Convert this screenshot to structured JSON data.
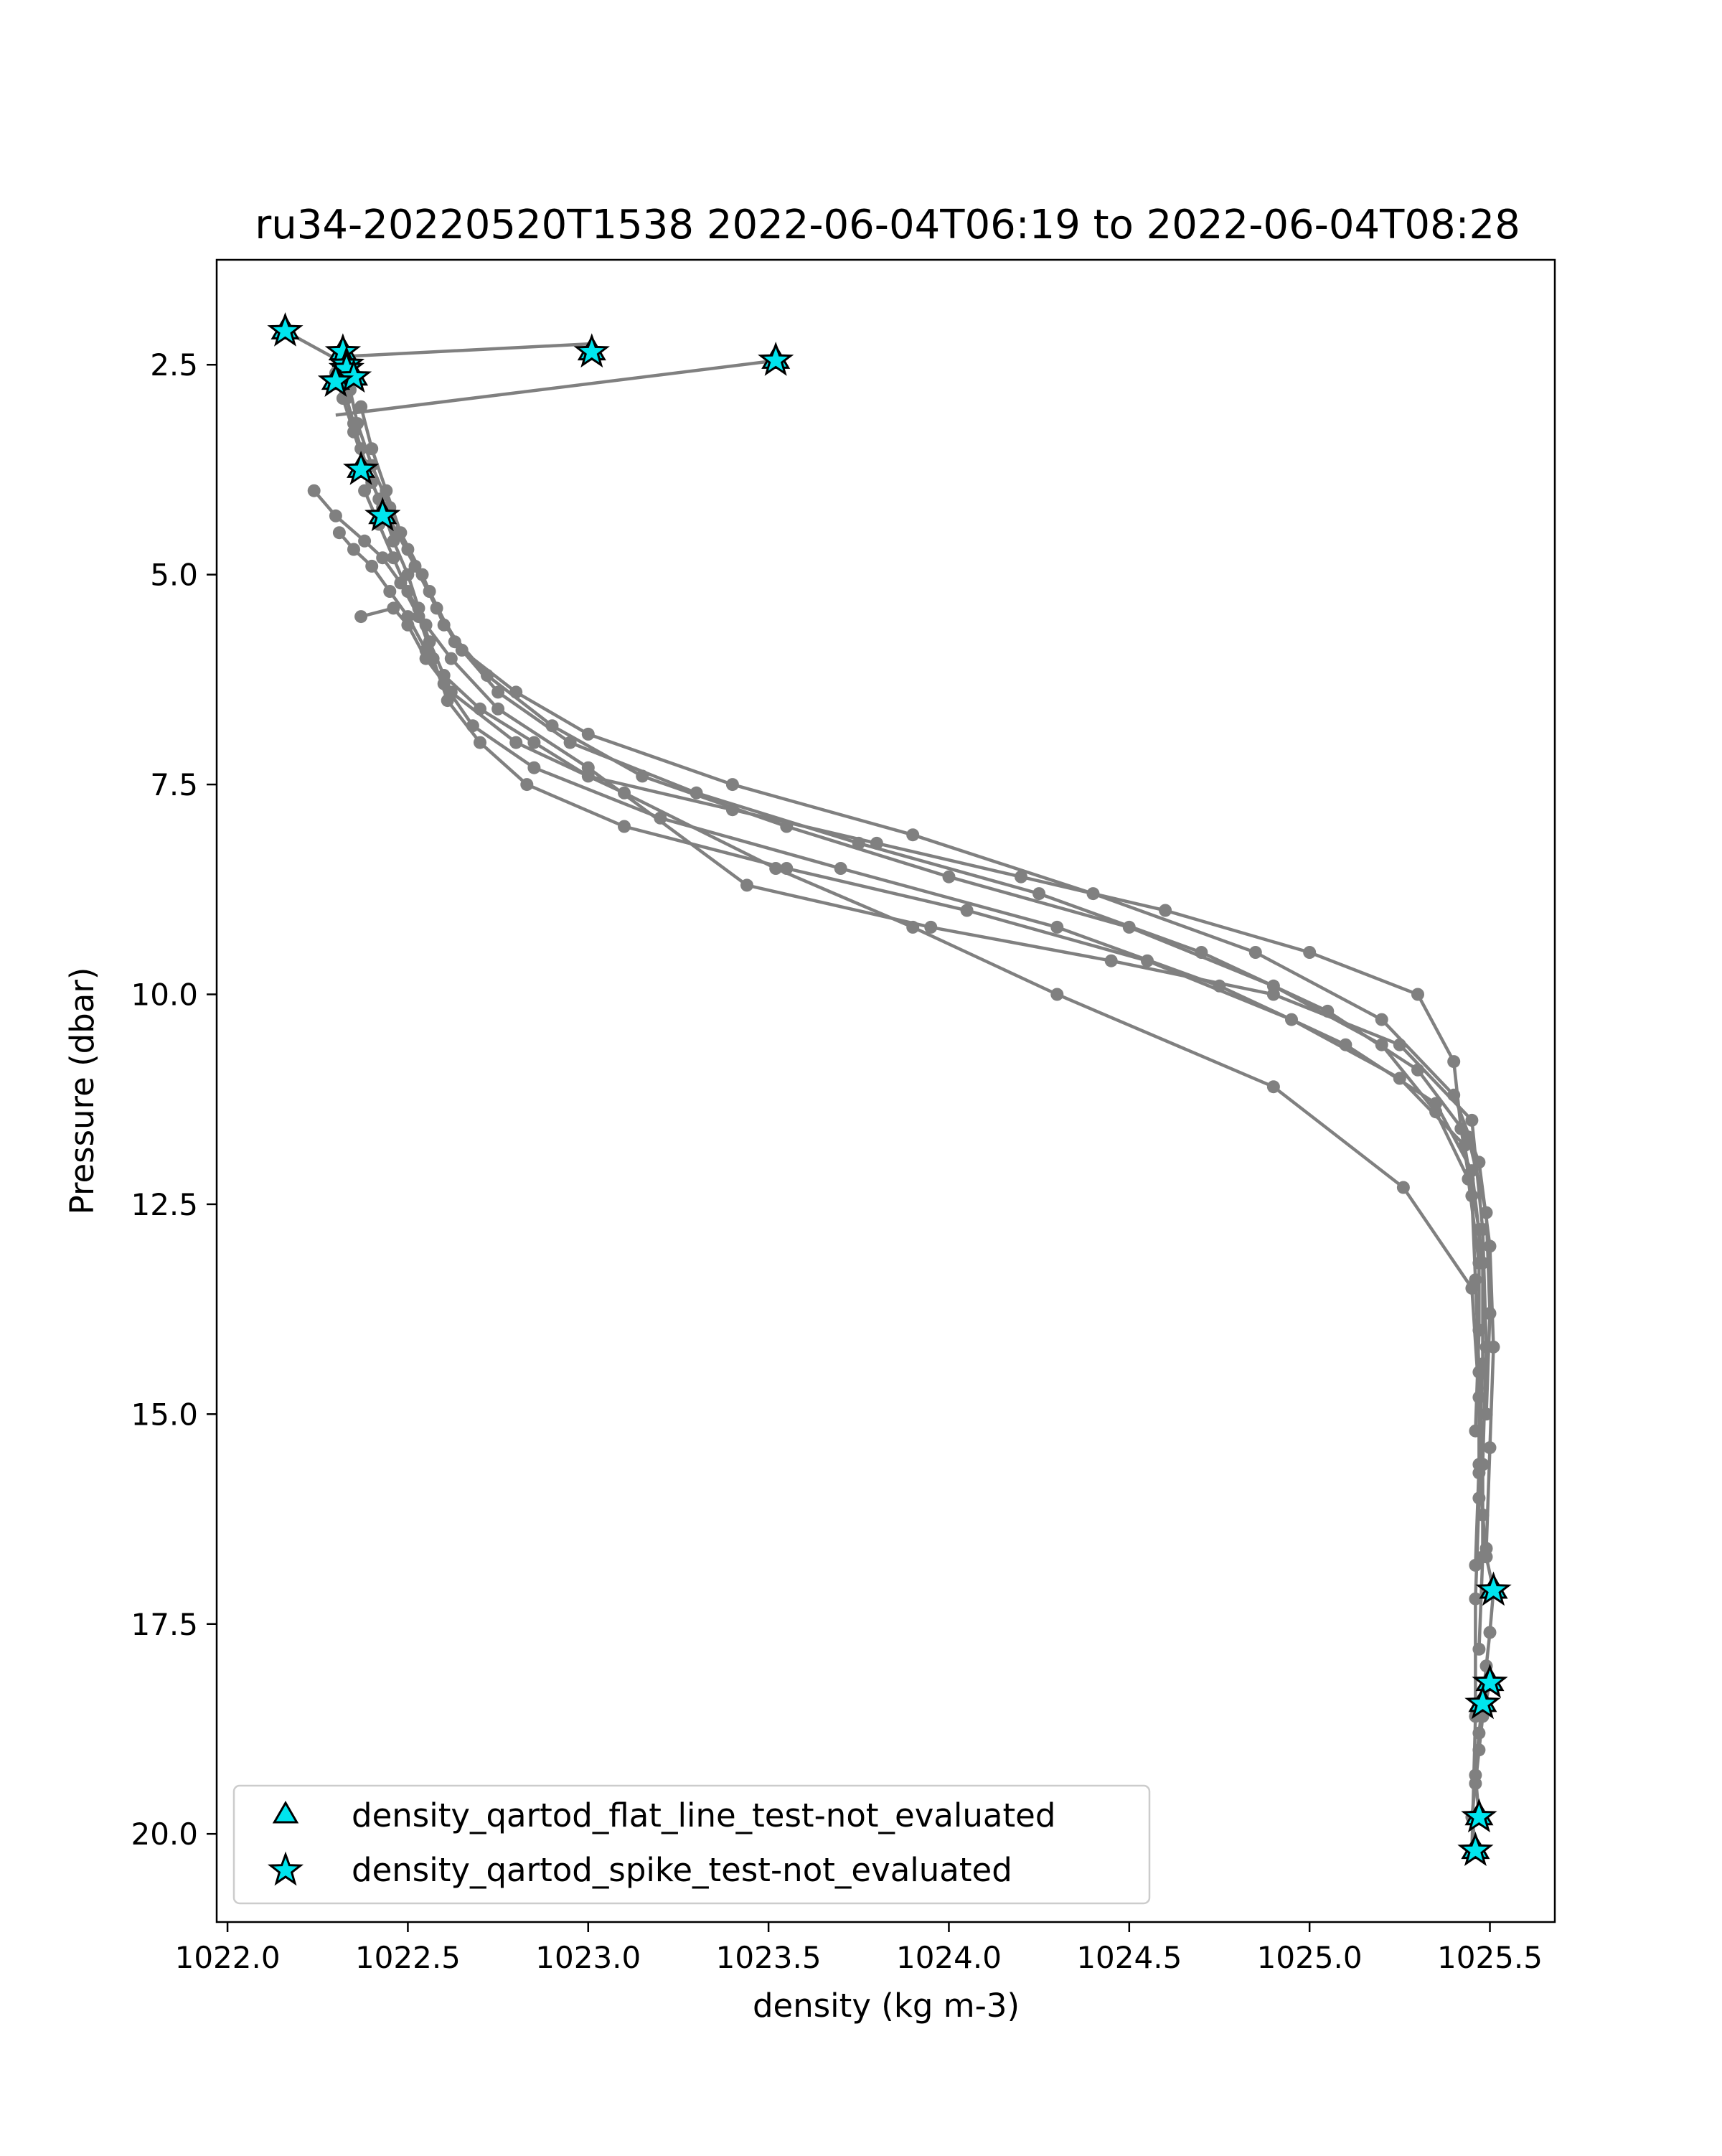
{
  "chart_data": {
    "type": "line",
    "title": "ru34-20220520T1538 2022-06-04T06:19 to 2022-06-04T08:28",
    "xlabel": "density (kg m-3)",
    "ylabel": "Pressure (dbar)",
    "xlim": [
      1021.97,
      1025.68
    ],
    "ylim": [
      21.05,
      1.25
    ],
    "y_inverted": true,
    "grid": false,
    "x_ticks": [
      1022.0,
      1022.5,
      1023.0,
      1023.5,
      1024.0,
      1024.5,
      1025.0,
      1025.5
    ],
    "x_tick_labels": [
      "1022.0",
      "1022.5",
      "1023.0",
      "1023.5",
      "1024.0",
      "1024.5",
      "1025.0",
      "1025.5"
    ],
    "y_ticks": [
      2.5,
      5.0,
      7.5,
      10.0,
      12.5,
      15.0,
      17.5,
      20.0
    ],
    "y_tick_labels": [
      "2.5",
      "5.0",
      "7.5",
      "10.0",
      "12.5",
      "15.0",
      "17.5",
      "20.0"
    ],
    "colors": {
      "profile_line": "#808080",
      "marker_fill": "#00e5ee",
      "marker_edge": "#000000",
      "axes": "#000000",
      "background": "#ffffff"
    },
    "series": [
      {
        "x": [
          1022.16,
          1022.33,
          1022.34,
          1022.33,
          1022.35,
          1022.37,
          1022.4,
          1022.43,
          1022.46,
          1022.5,
          1022.53,
          1022.56,
          1022.6,
          1022.7,
          1022.85,
          1023.0,
          1023.4,
          1023.8,
          1024.2,
          1024.6,
          1025.0,
          1025.3,
          1025.4,
          1025.42,
          1025.45,
          1025.46,
          1025.47,
          1025.48,
          1025.48,
          1025.47
        ],
        "y": [
          2.1,
          2.5,
          2.7,
          2.9,
          3.2,
          3.5,
          3.9,
          4.2,
          4.6,
          5.0,
          5.4,
          5.8,
          6.2,
          6.6,
          7.0,
          7.4,
          7.8,
          8.2,
          8.6,
          9.0,
          9.5,
          10.0,
          10.8,
          11.6,
          12.4,
          13.4,
          14.5,
          15.6,
          16.7,
          17.8
        ]
      },
      {
        "x": [
          1022.3,
          1022.32,
          1022.35,
          1022.38,
          1022.42,
          1022.47,
          1022.52,
          1022.58,
          1022.65,
          1022.8,
          1023.0,
          1023.4,
          1023.9,
          1024.4,
          1024.85,
          1025.2,
          1025.4,
          1025.47,
          1025.5,
          1025.51,
          1025.5,
          1025.49
        ],
        "y": [
          2.6,
          2.9,
          3.3,
          3.7,
          4.1,
          4.5,
          4.9,
          5.4,
          5.9,
          6.4,
          6.9,
          7.5,
          8.1,
          8.8,
          9.5,
          10.3,
          11.2,
          12.0,
          13.0,
          14.2,
          15.4,
          16.6
        ]
      },
      {
        "x": [
          1022.32,
          1022.34,
          1022.36,
          1022.4,
          1022.45,
          1022.5,
          1022.56,
          1022.63,
          1022.75,
          1022.95,
          1023.3,
          1023.75,
          1024.25,
          1024.7,
          1025.05,
          1025.3,
          1025.44,
          1025.49,
          1025.5,
          1025.49
        ],
        "y": [
          2.4,
          2.8,
          3.2,
          3.7,
          4.2,
          4.7,
          5.2,
          5.8,
          6.4,
          7.0,
          7.6,
          8.2,
          8.8,
          9.5,
          10.2,
          10.9,
          11.7,
          12.6,
          13.8,
          15.0
        ]
      },
      {
        "x": [
          1022.37,
          1022.4,
          1022.44,
          1022.48,
          1022.54,
          1022.6,
          1022.72,
          1022.9,
          1023.15,
          1023.55,
          1024.0,
          1024.5,
          1024.9,
          1025.2,
          1025.35,
          1025.44,
          1025.47
        ],
        "y": [
          3.0,
          3.5,
          4.0,
          4.5,
          5.0,
          5.6,
          6.2,
          6.8,
          7.4,
          8.0,
          8.6,
          9.2,
          9.9,
          10.6,
          11.4,
          12.2,
          13.2
        ]
      },
      {
        "x": [
          1022.24,
          1022.3,
          1022.38,
          1022.43,
          1022.48,
          1022.53,
          1022.57,
          1022.61,
          1022.7,
          1022.83,
          1023.1,
          1023.55,
          1024.05,
          1024.55,
          1024.95,
          1025.25,
          1025.43,
          1025.47,
          1025.47,
          1025.46
        ],
        "y": [
          4.0,
          4.3,
          4.6,
          4.8,
          5.1,
          5.5,
          6.0,
          6.5,
          7.0,
          7.5,
          8.0,
          8.5,
          9.0,
          9.6,
          10.3,
          11.0,
          11.8,
          12.8,
          14.0,
          15.2
        ]
      },
      {
        "x": [
          1022.31,
          1022.35,
          1022.4,
          1022.45,
          1022.5,
          1022.55,
          1022.6,
          1022.68,
          1022.85,
          1023.2,
          1023.7,
          1024.3,
          1024.75,
          1025.1,
          1025.35,
          1025.45,
          1025.48,
          1025.48,
          1025.47,
          1025.46
        ],
        "y": [
          4.5,
          4.7,
          4.9,
          5.2,
          5.5,
          5.9,
          6.3,
          6.8,
          7.3,
          7.9,
          8.5,
          9.2,
          9.9,
          10.6,
          11.3,
          12.1,
          13.2,
          14.4,
          15.6,
          16.8
        ]
      },
      {
        "x": [
          1022.37,
          1022.46,
          1022.5,
          1022.55,
          1022.62,
          1022.8,
          1023.1,
          1023.52,
          1023.9,
          1024.3,
          1024.9,
          1025.26,
          1025.45,
          1025.47,
          1025.47,
          1025.46,
          1025.46,
          1025.45
        ],
        "y": [
          5.5,
          5.4,
          5.6,
          6.0,
          6.4,
          7.0,
          7.6,
          8.5,
          9.2,
          10.0,
          11.1,
          12.3,
          13.5,
          14.8,
          16.0,
          17.2,
          18.6,
          20.2
        ]
      },
      {
        "x": [
          1022.38,
          1022.42,
          1022.46,
          1022.5,
          1022.55,
          1022.62,
          1022.75,
          1023.0,
          1023.44,
          1023.95,
          1024.45,
          1024.9,
          1025.25,
          1025.45,
          1025.48,
          1025.49,
          1025.48
        ],
        "y": [
          4.0,
          4.4,
          4.8,
          5.2,
          5.6,
          6.0,
          6.6,
          7.3,
          8.7,
          9.2,
          9.6,
          10.0,
          10.6,
          11.5,
          12.8,
          14.2,
          15.6
        ]
      },
      {
        "x": [
          1025.47,
          1025.48,
          1025.49,
          1025.51,
          1025.5,
          1025.49,
          1025.48,
          1025.47,
          1025.46,
          1025.47
        ],
        "y": [
          15.7,
          16.2,
          16.7,
          17.1,
          17.6,
          18.0,
          18.4,
          18.8,
          19.3,
          19.8
        ]
      },
      {
        "x": [
          1025.5,
          1025.48,
          1025.47,
          1025.46,
          1025.45,
          1025.46
        ],
        "y": [
          18.2,
          18.6,
          19.0,
          19.4,
          19.8,
          20.15
        ]
      }
    ],
    "connector_segments": [
      {
        "x": [
          1022.33,
          1023.01
        ],
        "y": [
          2.4,
          2.25
        ]
      },
      {
        "x": [
          1022.3,
          1023.52
        ],
        "y": [
          3.1,
          2.45
        ]
      }
    ],
    "spike_test_not_evaluated": {
      "x": [
        1022.16,
        1022.32,
        1022.33,
        1022.33,
        1022.35,
        1022.3,
        1023.01,
        1023.52,
        1022.37,
        1022.43,
        1025.51,
        1025.5,
        1025.48,
        1025.47,
        1025.46
      ],
      "y": [
        2.1,
        2.35,
        2.5,
        2.55,
        2.65,
        2.7,
        2.35,
        2.45,
        3.75,
        4.3,
        17.1,
        18.2,
        18.45,
        19.8,
        20.2
      ]
    },
    "flat_line_test_not_evaluated": {
      "x": [
        1022.16,
        1022.32,
        1022.33,
        1022.35,
        1022.3,
        1023.01,
        1023.52,
        1022.37,
        1022.43,
        1025.51,
        1025.5,
        1025.48,
        1025.47,
        1025.46
      ],
      "y": [
        2.1,
        2.35,
        2.5,
        2.65,
        2.7,
        2.35,
        2.45,
        3.75,
        4.3,
        17.1,
        18.2,
        18.45,
        19.8,
        20.2
      ]
    },
    "legend": {
      "location": "lower left",
      "entries": [
        {
          "label": "density_qartod_flat_line_test-not_evaluated",
          "marker": "triangle"
        },
        {
          "label": "density_qartod_spike_test-not_evaluated",
          "marker": "star"
        }
      ]
    }
  }
}
